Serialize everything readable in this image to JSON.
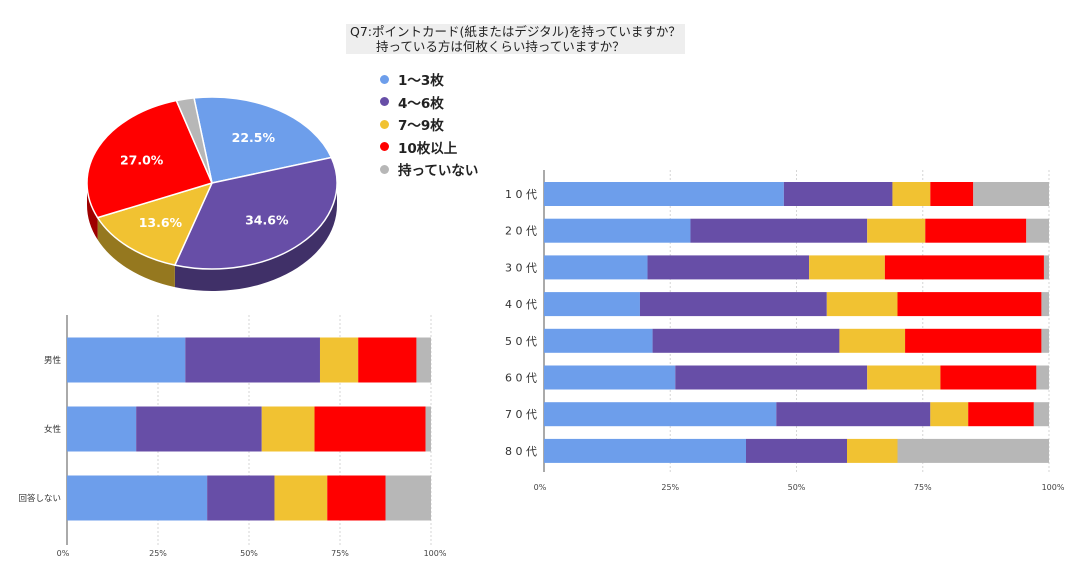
{
  "title": {
    "line1": "Q7:ポイントカード(紙またはデジタル)を持っていますか？",
    "line2": "持っている方は何枚くらい持っていますか？"
  },
  "legend": [
    {
      "label": "1〜3枚",
      "color": "#6d9eeb"
    },
    {
      "label": "4〜6枚",
      "color": "#674ea7"
    },
    {
      "label": "7〜9枚",
      "color": "#f1c232"
    },
    {
      "label": "10枚以上",
      "color": "#ff0000"
    },
    {
      "label": "持っていない",
      "color": "#b7b7b7"
    }
  ],
  "chart_data": [
    {
      "type": "pie",
      "title": "",
      "labels": [
        "1〜3枚",
        "4〜6枚",
        "7〜9枚",
        "10枚以上",
        "持っていない"
      ],
      "values": [
        22.5,
        34.6,
        13.6,
        27.0,
        2.3
      ],
      "data_labels": [
        "22.5%",
        "34.6%",
        "13.6%",
        "27.0%",
        ""
      ],
      "colors": [
        "#6d9eeb",
        "#674ea7",
        "#f1c232",
        "#ff0000",
        "#b7b7b7"
      ]
    },
    {
      "type": "bar",
      "stacked": "percent",
      "orientation": "horizontal",
      "title": "",
      "categories": [
        "男性",
        "女性",
        "回答しない"
      ],
      "xticks": [
        "0%",
        "25%",
        "50%",
        "75%",
        "100%"
      ],
      "series": [
        {
          "name": "1〜3枚",
          "values": [
            32.5,
            19,
            38.5
          ]
        },
        {
          "name": "4〜6枚",
          "values": [
            37,
            34.5,
            18.5
          ]
        },
        {
          "name": "7〜9枚",
          "values": [
            10.5,
            14.5,
            14.5
          ]
        },
        {
          "name": "10枚以上",
          "values": [
            16,
            30.5,
            16
          ]
        },
        {
          "name": "持っていない",
          "values": [
            4,
            1.5,
            12.5
          ]
        }
      ]
    },
    {
      "type": "bar",
      "stacked": "percent",
      "orientation": "horizontal",
      "title": "",
      "categories": [
        "1 0 代",
        "2 0 代",
        "3 0 代",
        "4 0 代",
        "5 0 代",
        "6 0 代",
        "7 0 代",
        "8 0 代"
      ],
      "xticks": [
        "0%",
        "25%",
        "50%",
        "75%",
        "100%"
      ],
      "series": [
        {
          "name": "1〜3枚",
          "values": [
            47.5,
            29,
            20.5,
            19,
            21.5,
            26,
            46,
            40
          ]
        },
        {
          "name": "4〜6枚",
          "values": [
            21.5,
            35,
            32,
            37,
            37,
            38,
            30.5,
            20
          ]
        },
        {
          "name": "7〜9枚",
          "values": [
            7.5,
            11.5,
            15,
            14,
            13,
            14.5,
            7.5,
            10
          ]
        },
        {
          "name": "10枚以上",
          "values": [
            8.5,
            20,
            31.5,
            28.5,
            27,
            19,
            13,
            0
          ]
        },
        {
          "name": "持っていない",
          "values": [
            15,
            4.5,
            1,
            1.5,
            1.5,
            2.5,
            3,
            30
          ]
        }
      ]
    }
  ]
}
